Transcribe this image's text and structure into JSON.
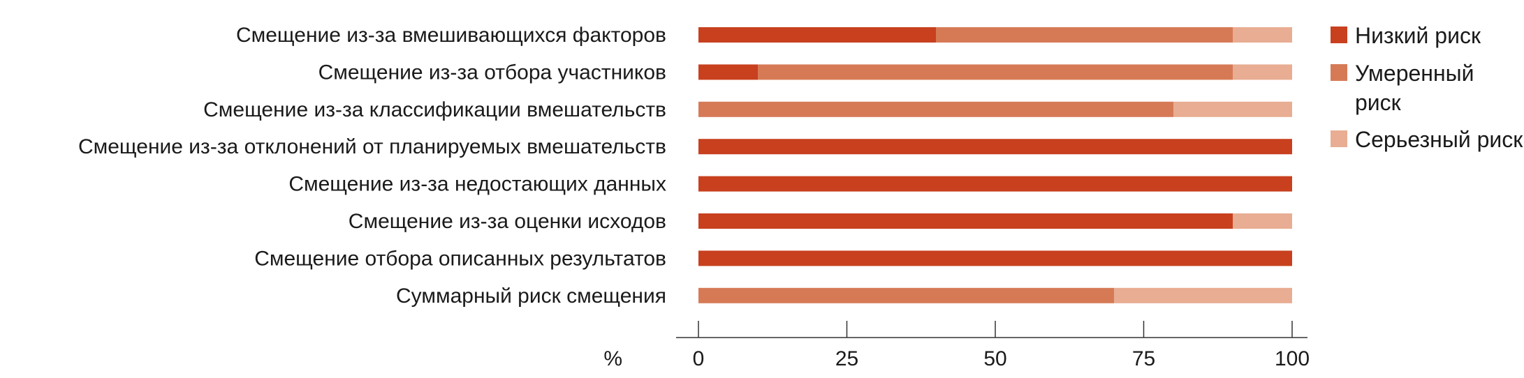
{
  "chart_data": {
    "type": "bar",
    "orientation": "horizontal",
    "stacked": true,
    "categories": [
      "Смещение из-за вмешивающихся факторов",
      "Смещение из-за отбора участников",
      "Смещение из-за классификации вмешательств",
      "Смещение из-за отклонений от планируемых вмешательств",
      "Смещение из-за недостающих данных",
      "Смещение из-за оценки исходов",
      "Смещение отбора описанных результатов",
      "Суммарный риск смещения"
    ],
    "series": [
      {
        "name": "Низкий риск",
        "color": "#c8401e",
        "values": [
          40,
          10,
          0,
          100,
          100,
          90,
          100,
          0
        ]
      },
      {
        "name": "Умеренный риск",
        "color": "#d67a56",
        "values": [
          50,
          80,
          80,
          0,
          0,
          0,
          0,
          70
        ]
      },
      {
        "name": "Серьезный риск",
        "color": "#e8ad92",
        "values": [
          10,
          10,
          20,
          0,
          0,
          10,
          0,
          30
        ]
      }
    ],
    "legend_lines": [
      [
        "Низкий риск"
      ],
      [
        "Умеренный",
        "риск"
      ],
      [
        "Серьезный риск"
      ]
    ],
    "xlim": [
      0,
      100
    ],
    "xticks": [
      0,
      25,
      50,
      75,
      100
    ],
    "xlabel": "%",
    "ylabel": "",
    "title": "",
    "grid": false,
    "legend_position": "right"
  }
}
